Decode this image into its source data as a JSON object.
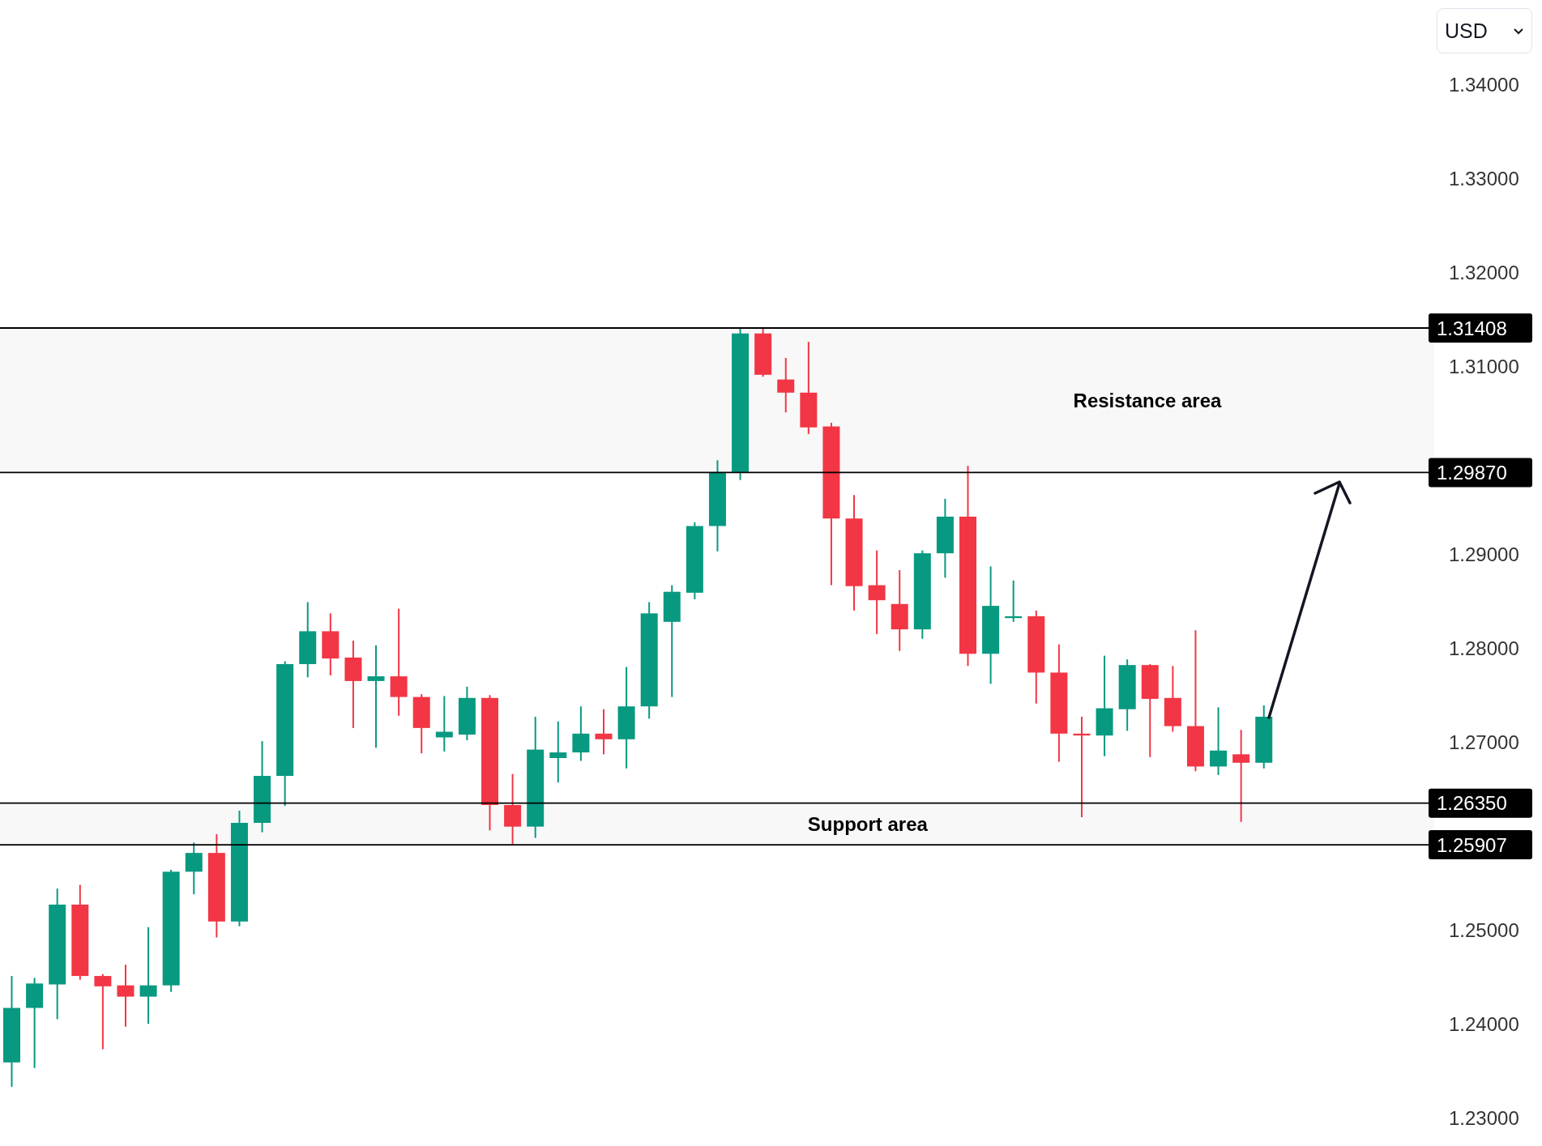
{
  "chart_data": {
    "type": "candlestick",
    "categories": [
      null,
      null,
      null,
      null,
      null,
      null,
      null,
      null,
      null,
      null,
      null,
      null,
      null,
      null,
      null,
      null,
      null,
      null,
      null,
      null,
      null,
      null,
      null,
      null,
      null,
      null,
      null,
      null,
      null,
      null,
      null,
      null,
      null,
      null,
      null,
      null,
      null,
      null,
      null,
      null,
      null,
      null,
      null,
      null,
      null,
      null,
      null,
      null,
      null,
      null,
      null,
      null,
      null,
      null,
      null,
      null,
      null,
      null,
      null,
      null,
      null,
      null,
      null
    ],
    "ohlc": [
      [
        1.2359,
        1.2451,
        1.2333,
        1.2417
      ],
      [
        1.2417,
        1.2449,
        1.2353,
        1.2443
      ],
      [
        1.2442,
        1.2544,
        1.2405,
        1.2527
      ],
      [
        1.2527,
        1.2548,
        1.2447,
        1.2451
      ],
      [
        1.2451,
        1.2453,
        1.2373,
        1.244
      ],
      [
        1.2441,
        1.2463,
        1.2397,
        1.2429
      ],
      [
        1.2429,
        1.2503,
        1.24,
        1.2441
      ],
      [
        1.2441,
        1.2564,
        1.2434,
        1.2562
      ],
      [
        1.2562,
        1.2593,
        1.2538,
        1.2582
      ],
      [
        1.2582,
        1.2602,
        1.2492,
        1.2509
      ],
      [
        1.2509,
        1.2627,
        1.2504,
        1.2614
      ],
      [
        1.2614,
        1.2701,
        1.2604,
        1.2664
      ],
      [
        1.2664,
        1.2786,
        1.2632,
        1.2783
      ],
      [
        1.2783,
        1.2849,
        1.2769,
        1.2818
      ],
      [
        1.2818,
        1.2837,
        1.2771,
        1.2789
      ],
      [
        1.279,
        1.2808,
        1.2715,
        1.2765
      ],
      [
        1.2765,
        1.2803,
        1.2694,
        1.277
      ],
      [
        1.277,
        1.2842,
        1.2728,
        1.2748
      ],
      [
        1.2748,
        1.2751,
        1.2688,
        1.2715
      ],
      [
        1.2705,
        1.2749,
        1.269,
        1.2711
      ],
      [
        1.2708,
        1.2759,
        1.2702,
        1.2747
      ],
      [
        1.2747,
        1.275,
        1.2606,
        1.2633
      ],
      [
        1.2633,
        1.2666,
        1.2591,
        1.261
      ],
      [
        1.261,
        1.2727,
        1.2598,
        1.2692
      ],
      [
        1.2683,
        1.2722,
        1.2657,
        1.2689
      ],
      [
        1.2689,
        1.2738,
        1.268,
        1.2709
      ],
      [
        1.2709,
        1.2735,
        1.2687,
        1.2703
      ],
      [
        1.2703,
        1.278,
        1.2672,
        1.2738
      ],
      [
        1.2738,
        1.2849,
        1.2725,
        1.2837
      ],
      [
        1.2828,
        1.2867,
        1.2748,
        1.286
      ],
      [
        1.2859,
        1.2934,
        1.2852,
        1.293
      ],
      [
        1.293,
        1.3,
        1.2903,
        1.2987
      ],
      [
        1.2987,
        1.3141,
        1.2979,
        1.3135
      ],
      [
        1.3135,
        1.3141,
        1.3089,
        1.3091
      ],
      [
        1.3086,
        1.3109,
        1.3051,
        1.3072
      ],
      [
        1.3072,
        1.3126,
        1.3028,
        1.3035
      ],
      [
        1.3036,
        1.304,
        1.2867,
        1.2938
      ],
      [
        1.2938,
        1.2963,
        1.284,
        1.2866
      ],
      [
        1.2867,
        1.2904,
        1.2815,
        1.2851
      ],
      [
        1.2847,
        1.2883,
        1.2797,
        1.282
      ],
      [
        1.282,
        1.2904,
        1.281,
        1.2901
      ],
      [
        1.2901,
        1.2959,
        1.2875,
        1.294
      ],
      [
        1.294,
        1.2994,
        1.2781,
        1.2794
      ],
      [
        1.2794,
        1.2887,
        1.2762,
        1.2845
      ],
      [
        1.2832,
        1.2872,
        1.2828,
        1.2834
      ],
      [
        1.2834,
        1.284,
        1.2741,
        1.2774
      ],
      [
        1.2774,
        1.2804,
        1.2679,
        1.2709
      ],
      [
        1.2709,
        1.2727,
        1.262,
        1.2707
      ],
      [
        1.2707,
        1.2792,
        1.2685,
        1.2736
      ],
      [
        1.2735,
        1.2788,
        1.2712,
        1.2782
      ],
      [
        1.2782,
        1.2783,
        1.2684,
        1.2746
      ],
      [
        1.2747,
        1.2781,
        1.2711,
        1.2717
      ],
      [
        1.2717,
        1.2819,
        1.2669,
        1.2674
      ],
      [
        1.2674,
        1.2737,
        1.2665,
        1.2691
      ],
      [
        1.2687,
        1.2713,
        1.2615,
        1.2678
      ],
      [
        1.2678,
        1.2739,
        1.2672,
        1.2727
      ],
      null,
      null,
      null,
      null,
      null,
      null,
      null
    ],
    "colors": [
      "#089981",
      "#089981",
      "#089981",
      "#f23645",
      "#f23645",
      "#f23645",
      "#089981",
      "#089981",
      "#089981",
      "#f23645",
      "#089981",
      "#089981",
      "#089981",
      "#089981",
      "#f23645",
      "#f23645",
      "#089981",
      "#f23645",
      "#f23645",
      "#089981",
      "#089981",
      "#f23645",
      "#f23645",
      "#089981",
      "#089981",
      "#089981",
      "#f23645",
      "#089981",
      "#089981",
      "#089981",
      "#089981",
      "#089981",
      "#089981",
      "#f23645",
      "#f23645",
      "#f23645",
      "#f23645",
      "#f23645",
      "#f23645",
      "#f23645",
      "#089981",
      "#089981",
      "#f23645",
      "#089981",
      "#089981",
      "#f23645",
      "#f23645",
      "#f23645",
      "#089981",
      "#089981",
      "#f23645",
      "#f23645",
      "#f23645",
      "#089981",
      "#f23645",
      "#089981",
      null,
      null,
      null,
      null,
      null,
      null,
      null
    ],
    "ylim": [
      1.227,
      1.349
    ],
    "yticks": [
      {
        "value": 1.34,
        "label": "1.34000"
      },
      {
        "value": 1.33,
        "label": "1.33000"
      },
      {
        "value": 1.32,
        "label": "1.32000"
      },
      {
        "value": 1.31,
        "label": "1.31000"
      },
      {
        "value": 1.29,
        "label": "1.29000"
      },
      {
        "value": 1.28,
        "label": "1.28000"
      },
      {
        "value": 1.27,
        "label": "1.27000"
      },
      {
        "value": 1.25,
        "label": "1.25000"
      },
      {
        "value": 1.24,
        "label": "1.24000"
      },
      {
        "value": 1.23,
        "label": "1.23000"
      }
    ],
    "ref_lines": [
      {
        "axis": "y",
        "value": 1.31408,
        "label": "1.31408",
        "color": "#000000"
      },
      {
        "axis": "y",
        "value": 1.2987,
        "label": "1.29870",
        "color": "#000000"
      },
      {
        "axis": "y",
        "value": 1.2635,
        "label": "1.26350",
        "color": "#000000"
      },
      {
        "axis": "y",
        "value": 1.25907,
        "label": "1.25907",
        "color": "#000000"
      }
    ],
    "bands": [
      {
        "axis": "y",
        "from": 1.2987,
        "to": 1.31408,
        "label": "Resistance area",
        "color": "#f8f8f8"
      },
      {
        "axis": "y",
        "from": 1.25907,
        "to": 1.2635,
        "label": "Support area",
        "color": "#f8f8f8"
      }
    ],
    "annotations": [
      "USD"
    ],
    "tick_labels": "y",
    "grid": false,
    "legend": false
  }
}
